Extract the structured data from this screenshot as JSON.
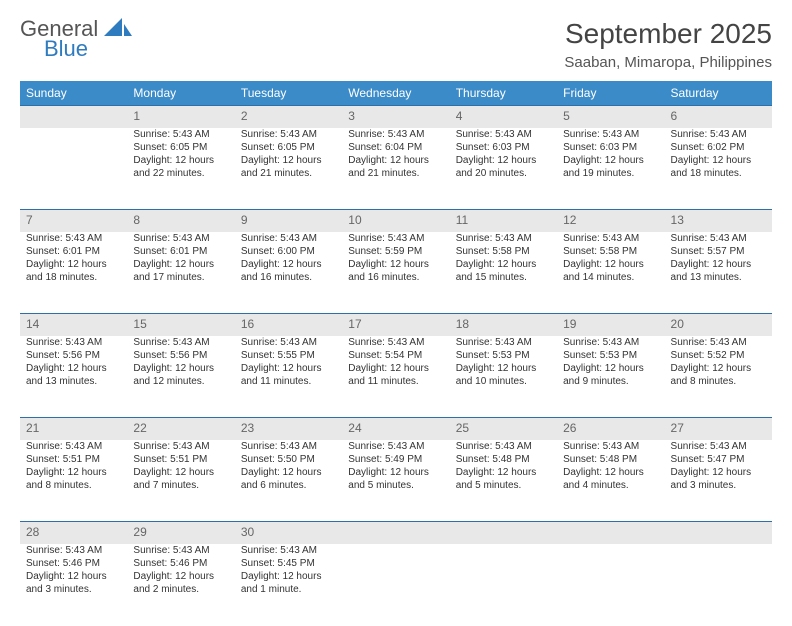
{
  "brand": {
    "word1": "General",
    "word2": "Blue",
    "logo_fill": "#2f7bbf"
  },
  "title": "September 2025",
  "location": "Saaban, Mimaropa, Philippines",
  "colors": {
    "header_bg": "#3b8bc9",
    "header_text": "#ffffff",
    "daynum_bg": "#e8e8e8",
    "daynum_text": "#666666",
    "border": "#2f6fa8",
    "body_text": "#333333"
  },
  "day_headers": [
    "Sunday",
    "Monday",
    "Tuesday",
    "Wednesday",
    "Thursday",
    "Friday",
    "Saturday"
  ],
  "weeks": [
    {
      "nums": [
        "",
        "1",
        "2",
        "3",
        "4",
        "5",
        "6"
      ],
      "cells": [
        null,
        {
          "sunrise": "Sunrise: 5:43 AM",
          "sunset": "Sunset: 6:05 PM",
          "dl1": "Daylight: 12 hours",
          "dl2": "and 22 minutes."
        },
        {
          "sunrise": "Sunrise: 5:43 AM",
          "sunset": "Sunset: 6:05 PM",
          "dl1": "Daylight: 12 hours",
          "dl2": "and 21 minutes."
        },
        {
          "sunrise": "Sunrise: 5:43 AM",
          "sunset": "Sunset: 6:04 PM",
          "dl1": "Daylight: 12 hours",
          "dl2": "and 21 minutes."
        },
        {
          "sunrise": "Sunrise: 5:43 AM",
          "sunset": "Sunset: 6:03 PM",
          "dl1": "Daylight: 12 hours",
          "dl2": "and 20 minutes."
        },
        {
          "sunrise": "Sunrise: 5:43 AM",
          "sunset": "Sunset: 6:03 PM",
          "dl1": "Daylight: 12 hours",
          "dl2": "and 19 minutes."
        },
        {
          "sunrise": "Sunrise: 5:43 AM",
          "sunset": "Sunset: 6:02 PM",
          "dl1": "Daylight: 12 hours",
          "dl2": "and 18 minutes."
        }
      ]
    },
    {
      "nums": [
        "7",
        "8",
        "9",
        "10",
        "11",
        "12",
        "13"
      ],
      "cells": [
        {
          "sunrise": "Sunrise: 5:43 AM",
          "sunset": "Sunset: 6:01 PM",
          "dl1": "Daylight: 12 hours",
          "dl2": "and 18 minutes."
        },
        {
          "sunrise": "Sunrise: 5:43 AM",
          "sunset": "Sunset: 6:01 PM",
          "dl1": "Daylight: 12 hours",
          "dl2": "and 17 minutes."
        },
        {
          "sunrise": "Sunrise: 5:43 AM",
          "sunset": "Sunset: 6:00 PM",
          "dl1": "Daylight: 12 hours",
          "dl2": "and 16 minutes."
        },
        {
          "sunrise": "Sunrise: 5:43 AM",
          "sunset": "Sunset: 5:59 PM",
          "dl1": "Daylight: 12 hours",
          "dl2": "and 16 minutes."
        },
        {
          "sunrise": "Sunrise: 5:43 AM",
          "sunset": "Sunset: 5:58 PM",
          "dl1": "Daylight: 12 hours",
          "dl2": "and 15 minutes."
        },
        {
          "sunrise": "Sunrise: 5:43 AM",
          "sunset": "Sunset: 5:58 PM",
          "dl1": "Daylight: 12 hours",
          "dl2": "and 14 minutes."
        },
        {
          "sunrise": "Sunrise: 5:43 AM",
          "sunset": "Sunset: 5:57 PM",
          "dl1": "Daylight: 12 hours",
          "dl2": "and 13 minutes."
        }
      ]
    },
    {
      "nums": [
        "14",
        "15",
        "16",
        "17",
        "18",
        "19",
        "20"
      ],
      "cells": [
        {
          "sunrise": "Sunrise: 5:43 AM",
          "sunset": "Sunset: 5:56 PM",
          "dl1": "Daylight: 12 hours",
          "dl2": "and 13 minutes."
        },
        {
          "sunrise": "Sunrise: 5:43 AM",
          "sunset": "Sunset: 5:56 PM",
          "dl1": "Daylight: 12 hours",
          "dl2": "and 12 minutes."
        },
        {
          "sunrise": "Sunrise: 5:43 AM",
          "sunset": "Sunset: 5:55 PM",
          "dl1": "Daylight: 12 hours",
          "dl2": "and 11 minutes."
        },
        {
          "sunrise": "Sunrise: 5:43 AM",
          "sunset": "Sunset: 5:54 PM",
          "dl1": "Daylight: 12 hours",
          "dl2": "and 11 minutes."
        },
        {
          "sunrise": "Sunrise: 5:43 AM",
          "sunset": "Sunset: 5:53 PM",
          "dl1": "Daylight: 12 hours",
          "dl2": "and 10 minutes."
        },
        {
          "sunrise": "Sunrise: 5:43 AM",
          "sunset": "Sunset: 5:53 PM",
          "dl1": "Daylight: 12 hours",
          "dl2": "and 9 minutes."
        },
        {
          "sunrise": "Sunrise: 5:43 AM",
          "sunset": "Sunset: 5:52 PM",
          "dl1": "Daylight: 12 hours",
          "dl2": "and 8 minutes."
        }
      ]
    },
    {
      "nums": [
        "21",
        "22",
        "23",
        "24",
        "25",
        "26",
        "27"
      ],
      "cells": [
        {
          "sunrise": "Sunrise: 5:43 AM",
          "sunset": "Sunset: 5:51 PM",
          "dl1": "Daylight: 12 hours",
          "dl2": "and 8 minutes."
        },
        {
          "sunrise": "Sunrise: 5:43 AM",
          "sunset": "Sunset: 5:51 PM",
          "dl1": "Daylight: 12 hours",
          "dl2": "and 7 minutes."
        },
        {
          "sunrise": "Sunrise: 5:43 AM",
          "sunset": "Sunset: 5:50 PM",
          "dl1": "Daylight: 12 hours",
          "dl2": "and 6 minutes."
        },
        {
          "sunrise": "Sunrise: 5:43 AM",
          "sunset": "Sunset: 5:49 PM",
          "dl1": "Daylight: 12 hours",
          "dl2": "and 5 minutes."
        },
        {
          "sunrise": "Sunrise: 5:43 AM",
          "sunset": "Sunset: 5:48 PM",
          "dl1": "Daylight: 12 hours",
          "dl2": "and 5 minutes."
        },
        {
          "sunrise": "Sunrise: 5:43 AM",
          "sunset": "Sunset: 5:48 PM",
          "dl1": "Daylight: 12 hours",
          "dl2": "and 4 minutes."
        },
        {
          "sunrise": "Sunrise: 5:43 AM",
          "sunset": "Sunset: 5:47 PM",
          "dl1": "Daylight: 12 hours",
          "dl2": "and 3 minutes."
        }
      ]
    },
    {
      "nums": [
        "28",
        "29",
        "30",
        "",
        "",
        "",
        ""
      ],
      "cells": [
        {
          "sunrise": "Sunrise: 5:43 AM",
          "sunset": "Sunset: 5:46 PM",
          "dl1": "Daylight: 12 hours",
          "dl2": "and 3 minutes."
        },
        {
          "sunrise": "Sunrise: 5:43 AM",
          "sunset": "Sunset: 5:46 PM",
          "dl1": "Daylight: 12 hours",
          "dl2": "and 2 minutes."
        },
        {
          "sunrise": "Sunrise: 5:43 AM",
          "sunset": "Sunset: 5:45 PM",
          "dl1": "Daylight: 12 hours",
          "dl2": "and 1 minute."
        },
        null,
        null,
        null,
        null
      ]
    }
  ]
}
